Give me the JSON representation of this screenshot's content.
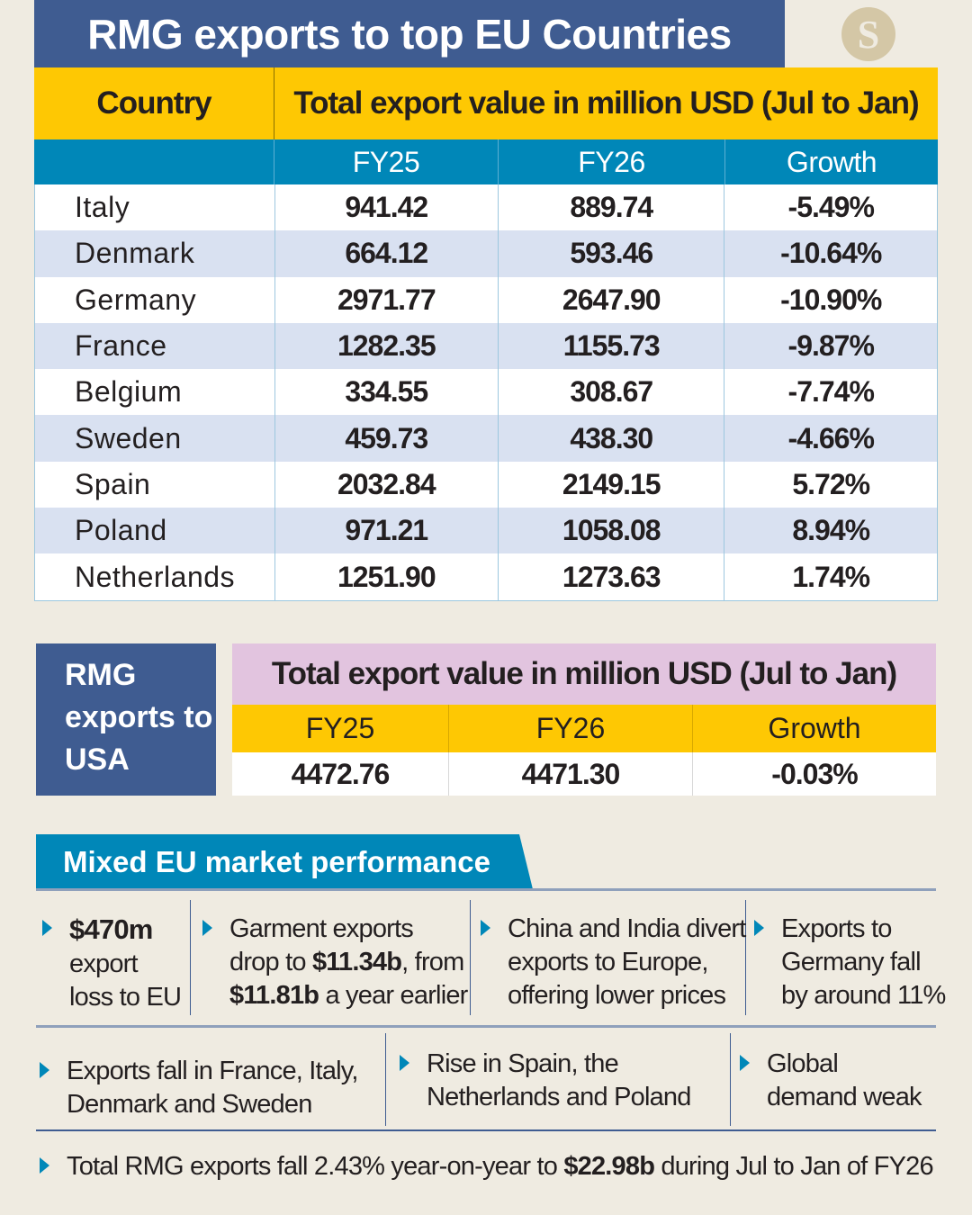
{
  "title": "RMG exports to top EU Countries",
  "logo_text": "S",
  "colors": {
    "navy": "#3f5c91",
    "yellow": "#fec803",
    "blue": "#0087b8",
    "pink": "#e2c4df",
    "row_alt": "#d9e1f1",
    "background": "#efebe1"
  },
  "chart_data": {
    "type": "table",
    "eu_table": {
      "country_header": "Country",
      "group_header": "Total export value in million USD (Jul to Jan)",
      "columns": [
        "FY25",
        "FY26",
        "Growth"
      ],
      "rows": [
        {
          "country": "Italy",
          "fy25": "941.42",
          "fy26": "889.74",
          "growth": "-5.49%"
        },
        {
          "country": "Denmark",
          "fy25": "664.12",
          "fy26": "593.46",
          "growth": "-10.64%"
        },
        {
          "country": "Germany",
          "fy25": "2971.77",
          "fy26": "2647.90",
          "growth": "-10.90%"
        },
        {
          "country": "France",
          "fy25": "1282.35",
          "fy26": "1155.73",
          "growth": "-9.87%"
        },
        {
          "country": "Belgium",
          "fy25": "334.55",
          "fy26": "308.67",
          "growth": "-7.74%"
        },
        {
          "country": "Sweden",
          "fy25": "459.73",
          "fy26": "438.30",
          "growth": "-4.66%"
        },
        {
          "country": "Spain",
          "fy25": "2032.84",
          "fy26": "2149.15",
          "growth": "5.72%"
        },
        {
          "country": "Poland",
          "fy25": "971.21",
          "fy26": "1058.08",
          "growth": "8.94%"
        },
        {
          "country": "Netherlands",
          "fy25": "1251.90",
          "fy26": "1273.63",
          "growth": "1.74%"
        }
      ]
    },
    "usa_table": {
      "label": "RMG exports to USA",
      "group_header": "Total export value in million USD (Jul to Jan)",
      "columns": [
        "FY25",
        "FY26",
        "Growth"
      ],
      "values": [
        "4472.76",
        "4471.30",
        "-0.03%"
      ]
    }
  },
  "mixed": {
    "heading": "Mixed EU market performance",
    "row1": [
      [
        {
          "t": "$470m",
          "b": true
        },
        {
          "t": "\nexport\nloss to EU"
        }
      ],
      [
        {
          "t": "Garment exports\ndrop to "
        },
        {
          "t": "$11.34b",
          "b": true
        },
        {
          "t": ", from\n"
        },
        {
          "t": "$11.81b",
          "b": true
        },
        {
          "t": " a year earlier"
        }
      ],
      [
        {
          "t": "China and India divert\nexports to Europe,\noffering lower prices"
        }
      ],
      [
        {
          "t": "Exports to\nGermany fall\nby around 11%"
        }
      ]
    ],
    "row2": [
      [
        {
          "t": "Exports fall in France, Italy,\nDenmark and Sweden"
        }
      ],
      [
        {
          "t": "Rise in Spain, the\nNetherlands and Poland"
        }
      ],
      [
        {
          "t": "Global\ndemand weak"
        }
      ]
    ],
    "footer": [
      {
        "t": "Total RMG exports fall 2.43% year-on-year to "
      },
      {
        "t": "$22.98b",
        "b": true
      },
      {
        "t": " during Jul to Jan of FY26"
      }
    ]
  }
}
